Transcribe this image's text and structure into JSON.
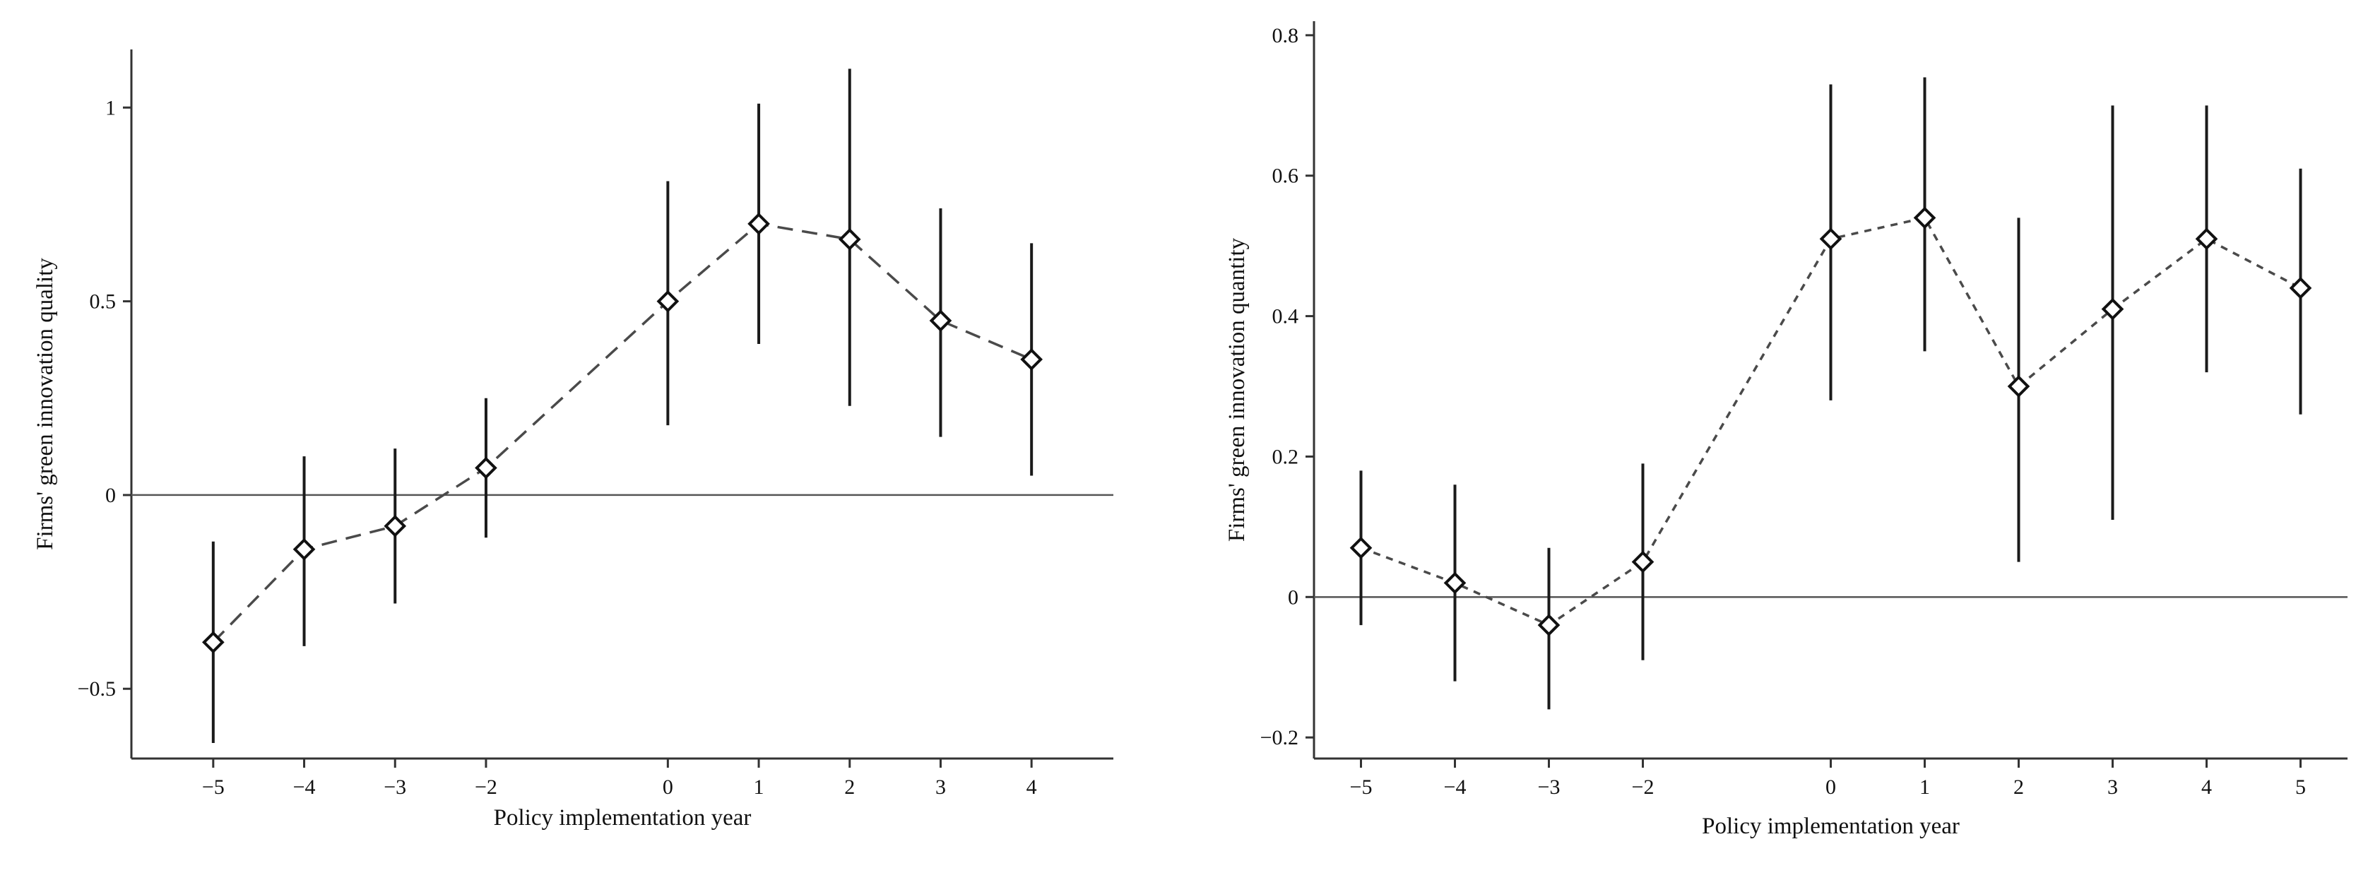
{
  "chart_data": [
    {
      "type": "scatter",
      "ylabel": "Firms' green innovation quality",
      "xlabel": "Policy implementation year",
      "x_ticks": [
        -5,
        -4,
        -3,
        -2,
        0,
        1,
        2,
        3,
        4
      ],
      "x_tick_labels": [
        "−5",
        "−4",
        "−3",
        "−2",
        "0",
        "1",
        "2",
        "3",
        "4"
      ],
      "y_ticks": [
        -0.5,
        0,
        0.5,
        1
      ],
      "y_tick_labels": [
        "−0.5",
        "0",
        "0.5",
        "1"
      ],
      "ylim": [
        -0.68,
        1.15
      ],
      "reference_line_y": 0,
      "line_style": "dashed",
      "marker": "diamond",
      "grid": false,
      "series": [
        {
          "x": [
            -5,
            -4,
            -3,
            -2,
            0,
            1,
            2,
            3,
            4
          ],
          "estimate": [
            -0.38,
            -0.14,
            -0.08,
            0.07,
            0.5,
            0.7,
            0.66,
            0.45,
            0.35
          ],
          "ci_low": [
            -0.64,
            -0.39,
            -0.28,
            -0.11,
            0.18,
            0.39,
            0.23,
            0.15,
            0.05
          ],
          "ci_high": [
            -0.12,
            0.1,
            0.12,
            0.25,
            0.81,
            1.01,
            1.1,
            0.74,
            0.65
          ]
        }
      ]
    },
    {
      "type": "scatter",
      "ylabel": "Firms' green innovation quantity",
      "xlabel": "Policy implementation year",
      "x_ticks": [
        -5,
        -4,
        -3,
        -2,
        0,
        1,
        2,
        3,
        4,
        5
      ],
      "x_tick_labels": [
        "−5",
        "−4",
        "−3",
        "−2",
        "0",
        "1",
        "2",
        "3",
        "4",
        "5"
      ],
      "y_ticks": [
        -0.2,
        0,
        0.2,
        0.4,
        0.6,
        0.8
      ],
      "y_tick_labels": [
        "−0.2",
        "0",
        "0.2",
        "0.4",
        "0.6",
        "0.8"
      ],
      "ylim": [
        -0.23,
        0.82
      ],
      "reference_line_y": 0,
      "line_style": "dotted",
      "marker": "diamond",
      "grid": false,
      "series": [
        {
          "x": [
            -5,
            -4,
            -3,
            -2,
            0,
            1,
            2,
            3,
            4,
            5
          ],
          "estimate": [
            0.07,
            0.02,
            -0.04,
            0.05,
            0.51,
            0.54,
            0.3,
            0.41,
            0.51,
            0.44
          ],
          "ci_low": [
            -0.04,
            -0.12,
            -0.16,
            -0.09,
            0.28,
            0.35,
            0.05,
            0.11,
            0.32,
            0.26
          ],
          "ci_high": [
            0.18,
            0.16,
            0.07,
            0.19,
            0.73,
            0.74,
            0.54,
            0.7,
            0.7,
            0.61
          ]
        }
      ]
    }
  ]
}
